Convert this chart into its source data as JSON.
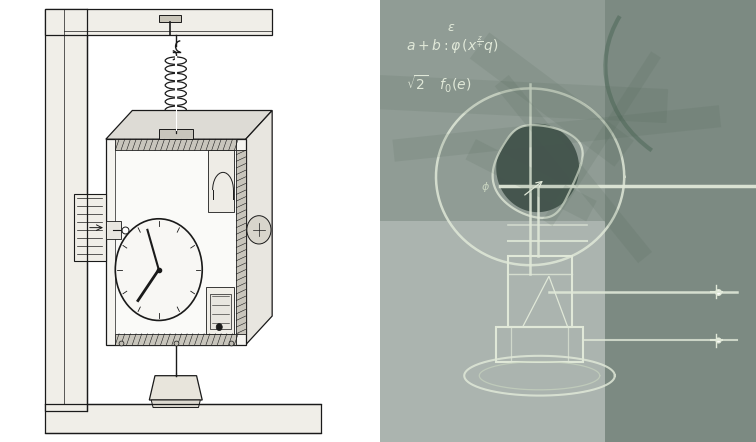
{
  "fig_width": 7.56,
  "fig_height": 4.42,
  "dpi": 100,
  "left_panel_bg": "#ffffff",
  "right_panel_bg": "#3a5040",
  "chalk_color": "#e0e8d8",
  "line_color": "#1a1a1a",
  "board_dark": "#2a3d30"
}
